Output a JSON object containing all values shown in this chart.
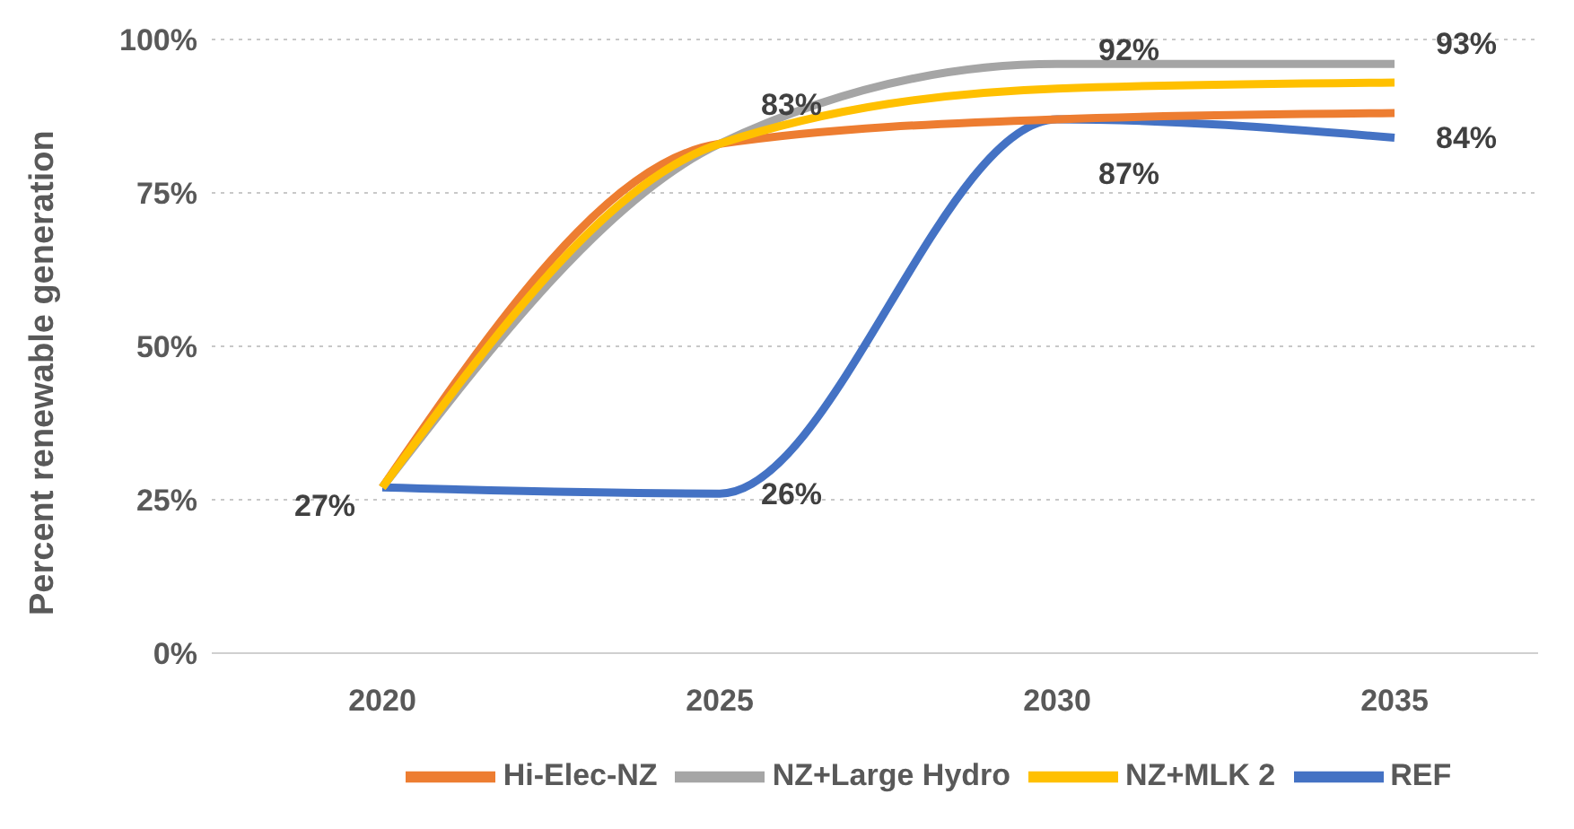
{
  "chart_data": {
    "type": "line",
    "ylabel": "Percent renewable generation",
    "categories": [
      "2020",
      "2025",
      "2030",
      "2035"
    ],
    "series": [
      {
        "name": "REF",
        "color": "#4472c4",
        "values": [
          27,
          26,
          87,
          84
        ],
        "value_labels": [
          "27%",
          "26%",
          "87%",
          "84%"
        ]
      },
      {
        "name": "Hi-Elec-NZ",
        "color": "#ed7d31",
        "values": [
          27,
          83,
          87,
          88
        ]
      },
      {
        "name": "NZ+Large Hydro",
        "color": "#a5a5a5",
        "values": [
          27,
          83,
          96,
          96
        ]
      },
      {
        "name": "NZ+MLK 2",
        "color": "#ffc000",
        "values": [
          27,
          83,
          92,
          93
        ],
        "value_labels": [
          null,
          "83%",
          "92%",
          "93%"
        ]
      }
    ],
    "ylim": [
      0,
      100
    ],
    "yticks": [
      {
        "value": 0,
        "label": "0%"
      },
      {
        "value": 25,
        "label": "25%"
      },
      {
        "value": 50,
        "label": "50%"
      },
      {
        "value": 75,
        "label": "75%"
      },
      {
        "value": 100,
        "label": "100%"
      }
    ],
    "grid": "y",
    "legend": "bottom",
    "marker": "none",
    "line_style": "solid"
  }
}
